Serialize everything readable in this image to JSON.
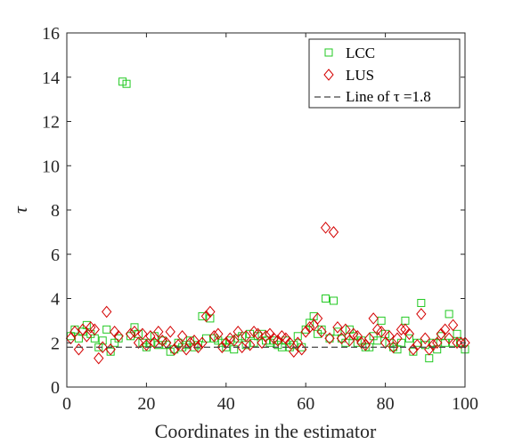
{
  "chart_data": {
    "type": "scatter",
    "title": "",
    "xlabel": "Coordinates in the estimator",
    "ylabel": "τ",
    "xlim": [
      0,
      100
    ],
    "ylim": [
      0,
      16
    ],
    "x_ticks": [
      "0",
      "20",
      "40",
      "60",
      "80",
      "100"
    ],
    "y_ticks": [
      "0",
      "2",
      "4",
      "6",
      "8",
      "10",
      "12",
      "14",
      "16"
    ],
    "grid": false,
    "legend_position": "top-right",
    "colors": {
      "LCC": "#22c922",
      "LUS": "#d40000",
      "line": "#444444"
    },
    "series": [
      {
        "name": "LCC",
        "marker": "square",
        "points": [
          [
            1,
            2.3
          ],
          [
            2,
            2.6
          ],
          [
            3,
            2.2
          ],
          [
            4,
            2.5
          ],
          [
            5,
            2.8
          ],
          [
            6,
            2.4
          ],
          [
            7,
            2.2
          ],
          [
            8,
            1.8
          ],
          [
            9,
            2.1
          ],
          [
            10,
            2.6
          ],
          [
            11,
            1.6
          ],
          [
            12,
            2.0
          ],
          [
            13,
            2.2
          ],
          [
            14,
            13.8
          ],
          [
            15,
            13.7
          ],
          [
            16,
            2.3
          ],
          [
            17,
            2.7
          ],
          [
            18,
            2.4
          ],
          [
            19,
            2.0
          ],
          [
            20,
            1.8
          ],
          [
            21,
            2.0
          ],
          [
            22,
            2.3
          ],
          [
            23,
            1.9
          ],
          [
            24,
            2.1
          ],
          [
            25,
            1.9
          ],
          [
            26,
            1.6
          ],
          [
            27,
            1.7
          ],
          [
            28,
            2.0
          ],
          [
            29,
            1.8
          ],
          [
            30,
            1.9
          ],
          [
            31,
            2.1
          ],
          [
            32,
            1.8
          ],
          [
            33,
            1.9
          ],
          [
            34,
            3.2
          ],
          [
            35,
            2.2
          ],
          [
            36,
            3.1
          ],
          [
            37,
            2.2
          ],
          [
            38,
            2.1
          ],
          [
            39,
            2.0
          ],
          [
            40,
            1.8
          ],
          [
            41,
            2.1
          ],
          [
            42,
            1.7
          ],
          [
            43,
            2.2
          ],
          [
            44,
            2.3
          ],
          [
            45,
            1.9
          ],
          [
            46,
            2.4
          ],
          [
            47,
            2.0
          ],
          [
            48,
            2.3
          ],
          [
            49,
            2.4
          ],
          [
            50,
            2.1
          ],
          [
            51,
            2.0
          ],
          [
            52,
            2.1
          ],
          [
            53,
            1.9
          ],
          [
            54,
            1.8
          ],
          [
            55,
            2.1
          ],
          [
            56,
            1.8
          ],
          [
            57,
            1.9
          ],
          [
            58,
            2.3
          ],
          [
            59,
            1.8
          ],
          [
            60,
            2.6
          ],
          [
            61,
            2.9
          ],
          [
            62,
            3.2
          ],
          [
            63,
            2.4
          ],
          [
            64,
            2.6
          ],
          [
            65,
            4.0
          ],
          [
            66,
            2.2
          ],
          [
            67,
            3.9
          ],
          [
            68,
            2.5
          ],
          [
            69,
            2.2
          ],
          [
            70,
            2.0
          ],
          [
            71,
            2.6
          ],
          [
            72,
            2.3
          ],
          [
            73,
            2.0
          ],
          [
            74,
            2.1
          ],
          [
            75,
            1.8
          ],
          [
            76,
            1.8
          ],
          [
            77,
            2.3
          ],
          [
            78,
            2.1
          ],
          [
            79,
            3.0
          ],
          [
            80,
            2.4
          ],
          [
            81,
            2.0
          ],
          [
            82,
            1.8
          ],
          [
            83,
            1.7
          ],
          [
            84,
            2.0
          ],
          [
            85,
            3.0
          ],
          [
            86,
            2.2
          ],
          [
            87,
            1.6
          ],
          [
            88,
            2.0
          ],
          [
            89,
            3.8
          ],
          [
            90,
            1.9
          ],
          [
            91,
            1.3
          ],
          [
            92,
            2.0
          ],
          [
            93,
            1.7
          ],
          [
            94,
            2.3
          ],
          [
            95,
            2.0
          ],
          [
            96,
            3.3
          ],
          [
            97,
            2.0
          ],
          [
            98,
            2.4
          ],
          [
            99,
            2.0
          ],
          [
            100,
            1.7
          ]
        ]
      },
      {
        "name": "LUS",
        "marker": "diamond",
        "points": [
          [
            1,
            2.2
          ],
          [
            2,
            2.5
          ],
          [
            3,
            1.7
          ],
          [
            4,
            2.6
          ],
          [
            5,
            2.3
          ],
          [
            6,
            2.7
          ],
          [
            7,
            2.6
          ],
          [
            8,
            1.3
          ],
          [
            9,
            1.8
          ],
          [
            10,
            3.4
          ],
          [
            11,
            1.7
          ],
          [
            12,
            2.5
          ],
          [
            13,
            2.3
          ],
          [
            16,
            2.4
          ],
          [
            17,
            2.5
          ],
          [
            18,
            2.0
          ],
          [
            19,
            2.4
          ],
          [
            20,
            1.9
          ],
          [
            21,
            2.3
          ],
          [
            22,
            2.0
          ],
          [
            23,
            2.5
          ],
          [
            24,
            2.1
          ],
          [
            25,
            2.0
          ],
          [
            26,
            2.5
          ],
          [
            27,
            1.7
          ],
          [
            28,
            1.9
          ],
          [
            29,
            2.3
          ],
          [
            30,
            1.7
          ],
          [
            31,
            2.0
          ],
          [
            32,
            2.1
          ],
          [
            33,
            1.8
          ],
          [
            34,
            2.0
          ],
          [
            35,
            3.2
          ],
          [
            36,
            3.4
          ],
          [
            37,
            2.3
          ],
          [
            38,
            2.4
          ],
          [
            39,
            1.8
          ],
          [
            40,
            2.0
          ],
          [
            41,
            2.2
          ],
          [
            42,
            2.1
          ],
          [
            43,
            2.5
          ],
          [
            44,
            1.8
          ],
          [
            45,
            2.3
          ],
          [
            46,
            1.9
          ],
          [
            47,
            2.5
          ],
          [
            48,
            2.4
          ],
          [
            49,
            2.0
          ],
          [
            50,
            2.3
          ],
          [
            51,
            2.4
          ],
          [
            52,
            2.2
          ],
          [
            53,
            2.1
          ],
          [
            54,
            2.3
          ],
          [
            55,
            2.2
          ],
          [
            56,
            2.0
          ],
          [
            57,
            1.6
          ],
          [
            58,
            2.0
          ],
          [
            59,
            1.7
          ],
          [
            60,
            2.5
          ],
          [
            61,
            2.7
          ],
          [
            62,
            2.8
          ],
          [
            63,
            3.1
          ],
          [
            64,
            2.5
          ],
          [
            65,
            7.2
          ],
          [
            66,
            2.2
          ],
          [
            67,
            7.0
          ],
          [
            68,
            2.7
          ],
          [
            69,
            2.2
          ],
          [
            70,
            2.6
          ],
          [
            71,
            2.1
          ],
          [
            72,
            2.4
          ],
          [
            73,
            2.3
          ],
          [
            74,
            2.0
          ],
          [
            75,
            1.9
          ],
          [
            76,
            2.2
          ],
          [
            77,
            3.1
          ],
          [
            78,
            2.6
          ],
          [
            79,
            2.5
          ],
          [
            80,
            2.0
          ],
          [
            81,
            2.3
          ],
          [
            82,
            1.8
          ],
          [
            83,
            2.2
          ],
          [
            84,
            2.6
          ],
          [
            85,
            2.6
          ],
          [
            86,
            2.4
          ],
          [
            87,
            1.7
          ],
          [
            88,
            1.9
          ],
          [
            89,
            3.3
          ],
          [
            90,
            2.2
          ],
          [
            91,
            1.7
          ],
          [
            92,
            1.9
          ],
          [
            93,
            2.0
          ],
          [
            94,
            2.4
          ],
          [
            95,
            2.6
          ],
          [
            96,
            2.2
          ],
          [
            97,
            2.8
          ],
          [
            98,
            2.0
          ],
          [
            99,
            2.0
          ],
          [
            100,
            2.0
          ]
        ]
      },
      {
        "name": "Line of τ =1.8",
        "type": "line",
        "style": "dashed",
        "points": [
          [
            0,
            1.8
          ],
          [
            100,
            1.8
          ]
        ]
      }
    ]
  }
}
